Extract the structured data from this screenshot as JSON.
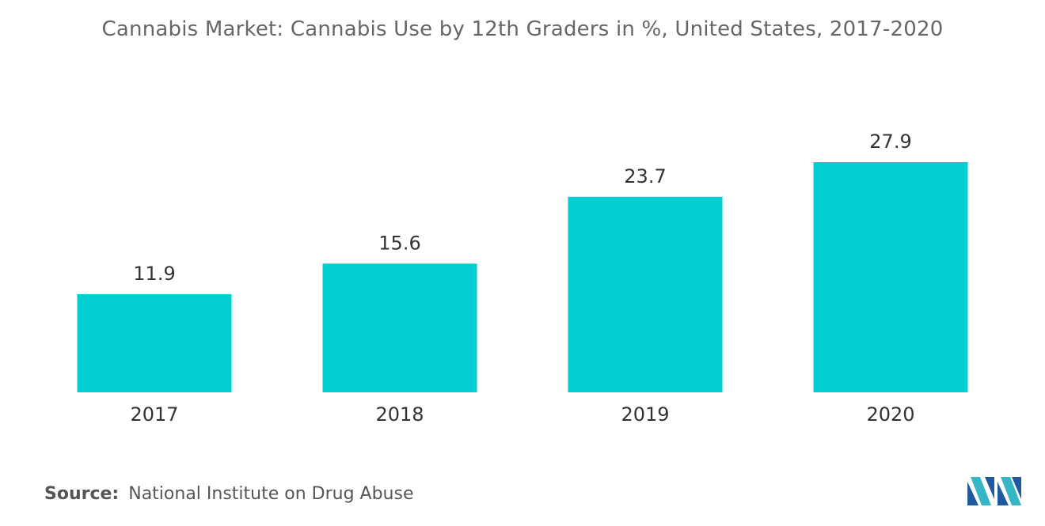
{
  "chart_data": {
    "type": "bar",
    "title": "Cannabis Market: Cannabis Use by 12th Graders in %, United States,  2017-2020",
    "categories": [
      "2017",
      "2018",
      "2019",
      "2020"
    ],
    "values": [
      11.9,
      15.6,
      23.7,
      27.9
    ],
    "value_labels": [
      "11.9",
      "15.6",
      "23.7",
      "27.9"
    ],
    "xlabel": "",
    "ylabel": "",
    "ylim": [
      0,
      27.9
    ],
    "grid": false,
    "legend": "none",
    "bar_color": "#00CED1"
  },
  "source": {
    "label": "Source:",
    "text": "National Institute on Drug Abuse"
  },
  "logo": {
    "icon": "mordor-intelligence-logo-icon",
    "colors": [
      "#1f5aa0",
      "#35b5c5"
    ]
  }
}
